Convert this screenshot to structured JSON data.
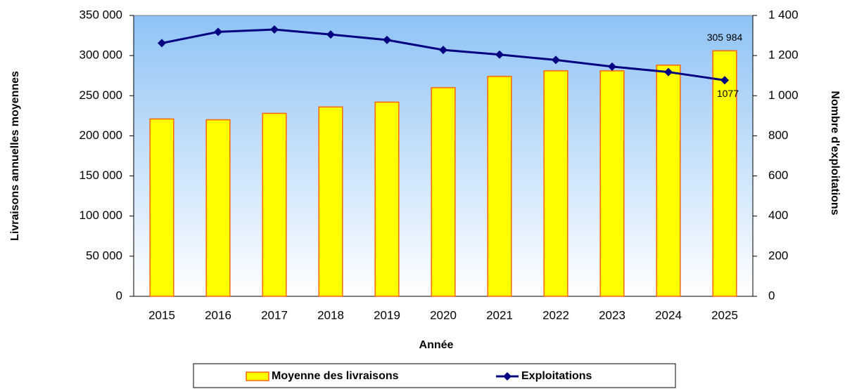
{
  "chart_data": {
    "type": "bar_line",
    "x_label": "Année",
    "y_label": "Livraisons annuelles moyennes",
    "y2_label": "Nombre d'exploitations",
    "categories": [
      "2015",
      "2016",
      "2017",
      "2018",
      "2019",
      "2020",
      "2021",
      "2022",
      "2023",
      "2024",
      "2025"
    ],
    "series": [
      {
        "name": "Moyenne des livraisons",
        "type": "bar",
        "color": "#ffff00",
        "edge_color": "#ff6600",
        "values": [
          221000,
          220000,
          228000,
          236000,
          242000,
          260000,
          274000,
          281000,
          281000,
          288000,
          305984
        ],
        "value_labels": [
          null,
          null,
          null,
          null,
          null,
          null,
          null,
          null,
          null,
          null,
          "305 984"
        ]
      },
      {
        "name": "Exploitations",
        "type": "line",
        "axis": "y2",
        "color": "#000080",
        "values": [
          1262,
          1318,
          1330,
          1305,
          1278,
          1228,
          1205,
          1178,
          1145,
          1118,
          1077
        ],
        "value_labels": [
          null,
          null,
          null,
          null,
          null,
          null,
          null,
          null,
          null,
          null,
          "1077"
        ]
      }
    ],
    "ylim": [
      0,
      350000
    ],
    "yticks": [
      0,
      {
        "value": 50000,
        "label": "50 000"
      },
      {
        "value": 100000,
        "label": "100 000"
      },
      {
        "value": 150000,
        "label": "150 000"
      },
      {
        "value": 200000,
        "label": "200 000"
      },
      {
        "value": 250000,
        "label": "250 000"
      },
      {
        "value": 300000,
        "label": "300 000"
      },
      {
        "value": 350000,
        "label": "350 000"
      }
    ],
    "y2lim": [
      0,
      1400
    ],
    "y2ticks": [
      0,
      200,
      400,
      600,
      800,
      {
        "value": 1000,
        "label": "1 000"
      },
      {
        "value": 1200,
        "label": "1 200"
      },
      {
        "value": 1400,
        "label": "1 400"
      }
    ],
    "legend": "bottom"
  }
}
